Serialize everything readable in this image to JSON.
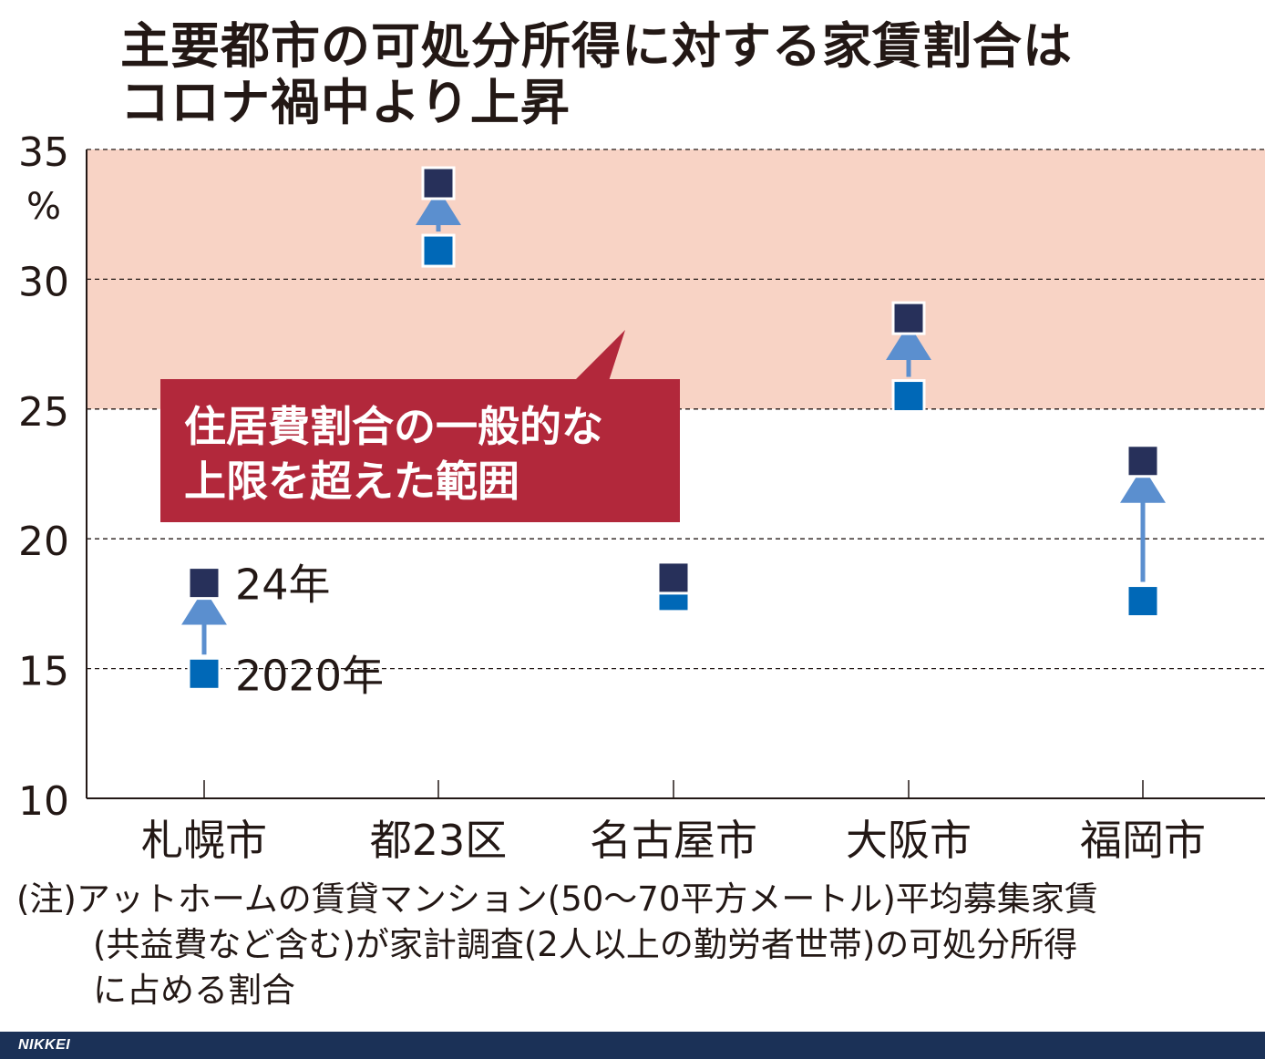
{
  "title": {
    "line1": "主要都市の可処分所得に対する家賃割合は",
    "line2": "コロナ禍中より上昇"
  },
  "chart_data": {
    "type": "scatter",
    "categories": [
      "札幌市",
      "都23区",
      "名古屋市",
      "大阪市",
      "福岡市"
    ],
    "series": [
      {
        "name": "2020年",
        "values": [
          14.8,
          31.1,
          17.8,
          25.5,
          17.6
        ],
        "color": "#0068b7"
      },
      {
        "name": "24年",
        "values": [
          18.3,
          33.7,
          18.5,
          28.5,
          23.0
        ],
        "color": "#27305a"
      }
    ],
    "ylim": [
      10,
      35
    ],
    "yticks": [
      10,
      15,
      20,
      25,
      30,
      35
    ],
    "ytick_labels": [
      "10",
      "15",
      "20",
      "25",
      "30",
      "35"
    ],
    "yunit": "%",
    "grid": true,
    "shaded_band": {
      "from": 25,
      "to": 35,
      "color": "#f8d3c5",
      "label_lines": [
        "住居費割合の一般的な",
        "上限を超えた範囲"
      ],
      "label_color": "#b2283b"
    },
    "arrow_color": "#5b8fcf",
    "legend": {
      "position": "inside-left",
      "items": [
        "24年",
        "2020年"
      ]
    }
  },
  "note": {
    "line1": "(注)アットホームの賃貸マンション(50〜70平方メートル)平均募集家賃",
    "line2": "(共益費など含む)が家計調査(2人以上の勤労者世帯)の可処分所得",
    "line3": "に占める割合"
  },
  "footer": {
    "brand": "NIKKEI"
  }
}
